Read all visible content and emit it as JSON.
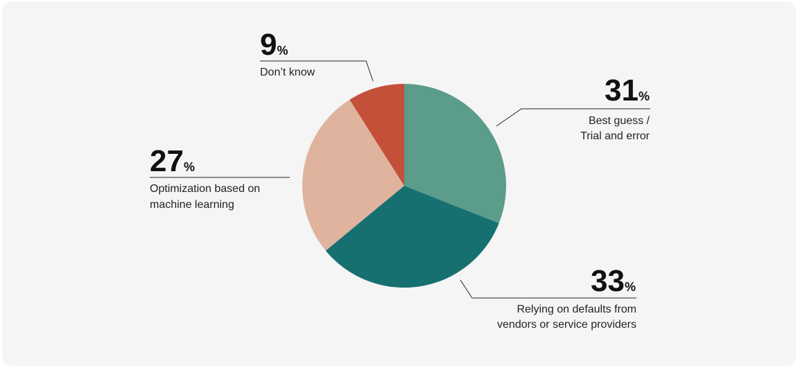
{
  "chart_data": {
    "type": "pie",
    "start_angle_deg": 0,
    "direction": "clockwise",
    "slices": [
      {
        "value": 31,
        "percent_label": "31",
        "label_lines": [
          "Best guess /",
          "Trial and error"
        ],
        "color": "#5b9c8a"
      },
      {
        "value": 33,
        "percent_label": "33",
        "label_lines": [
          "Relying on defaults from",
          "vendors or service providers"
        ],
        "color": "#177070"
      },
      {
        "value": 27,
        "percent_label": "27",
        "label_lines": [
          "Optimization based on",
          "machine learning"
        ],
        "color": "#dfb39d"
      },
      {
        "value": 9,
        "percent_label": "9",
        "label_lines": [
          "Don’t know"
        ],
        "color": "#c4503a"
      }
    ],
    "percent_sign": "%"
  }
}
